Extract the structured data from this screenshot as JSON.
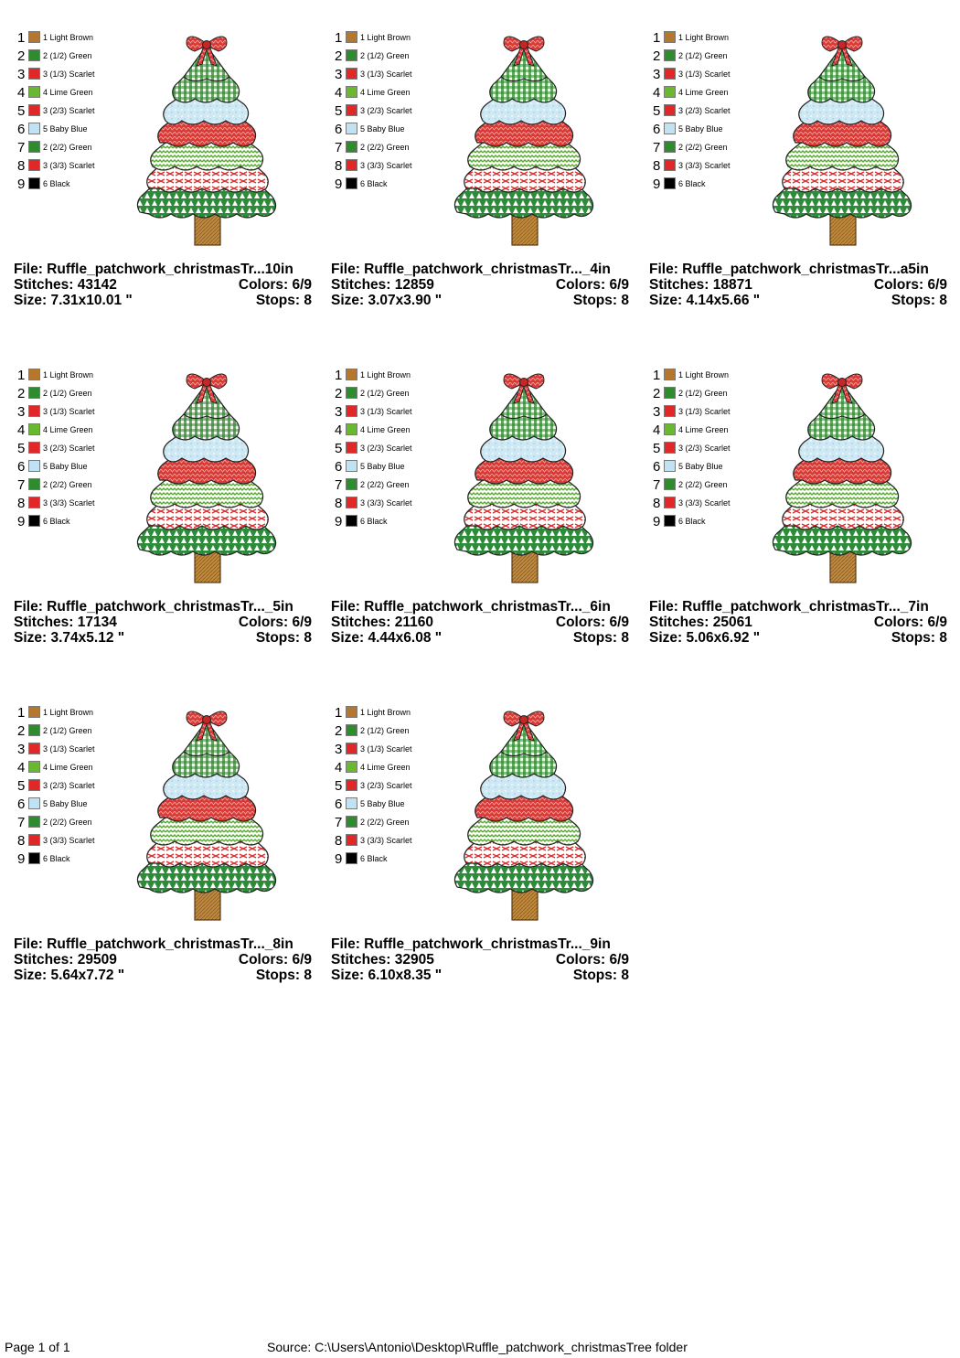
{
  "legend": [
    {
      "num": "1",
      "name": "1 Light Brown",
      "color": "#b5772e"
    },
    {
      "num": "2",
      "name": "2 (1/2) Green",
      "color": "#2e8b2e"
    },
    {
      "num": "3",
      "name": "3 (1/3) Scarlet",
      "color": "#e02828"
    },
    {
      "num": "4",
      "name": "4 Lime Green",
      "color": "#6ab82f"
    },
    {
      "num": "5",
      "name": "3 (2/3) Scarlet",
      "color": "#e02828"
    },
    {
      "num": "6",
      "name": "5 Baby Blue",
      "color": "#bfe3f2"
    },
    {
      "num": "7",
      "name": "2 (2/2) Green",
      "color": "#2e8b2e"
    },
    {
      "num": "8",
      "name": "3 (3/3) Scarlet",
      "color": "#e02828"
    },
    {
      "num": "9",
      "name": "6 Black",
      "color": "#000000"
    }
  ],
  "designs": [
    {
      "file": "File: Ruffle_patchwork_christmasTr...10in",
      "stitches": "Stitches: 43142",
      "colors": "Colors: 6/9",
      "size": "Size: 7.31x10.01 \"",
      "stops": "Stops: 8"
    },
    {
      "file": "File: Ruffle_patchwork_christmasTr..._4in",
      "stitches": "Stitches: 12859",
      "colors": "Colors: 6/9",
      "size": "Size: 3.07x3.90 \"",
      "stops": "Stops: 8"
    },
    {
      "file": "File: Ruffle_patchwork_christmasTr...a5in",
      "stitches": "Stitches: 18871",
      "colors": "Colors: 6/9",
      "size": "Size: 4.14x5.66 \"",
      "stops": "Stops: 8"
    },
    {
      "file": "File: Ruffle_patchwork_christmasTr..._5in",
      "stitches": "Stitches: 17134",
      "colors": "Colors: 6/9",
      "size": "Size: 3.74x5.12 \"",
      "stops": "Stops: 8"
    },
    {
      "file": "File: Ruffle_patchwork_christmasTr..._6in",
      "stitches": "Stitches: 21160",
      "colors": "Colors: 6/9",
      "size": "Size: 4.44x6.08 \"",
      "stops": "Stops: 8"
    },
    {
      "file": "File: Ruffle_patchwork_christmasTr..._7in",
      "stitches": "Stitches: 25061",
      "colors": "Colors: 6/9",
      "size": "Size: 5.06x6.92 \"",
      "stops": "Stops: 8"
    },
    {
      "file": "File: Ruffle_patchwork_christmasTr..._8in",
      "stitches": "Stitches: 29509",
      "colors": "Colors: 6/9",
      "size": "Size: 5.64x7.72 \"",
      "stops": "Stops: 8"
    },
    {
      "file": "File: Ruffle_patchwork_christmasTr..._9in",
      "stitches": "Stitches: 32905",
      "colors": "Colors: 6/9",
      "size": "Size: 6.10x8.35 \"",
      "stops": "Stops: 8"
    }
  ],
  "footer": {
    "page": "Page 1 of 1",
    "source": "Source: C:\\Users\\Antonio\\Desktop\\Ruffle_patchwork_christmasTree folder"
  }
}
